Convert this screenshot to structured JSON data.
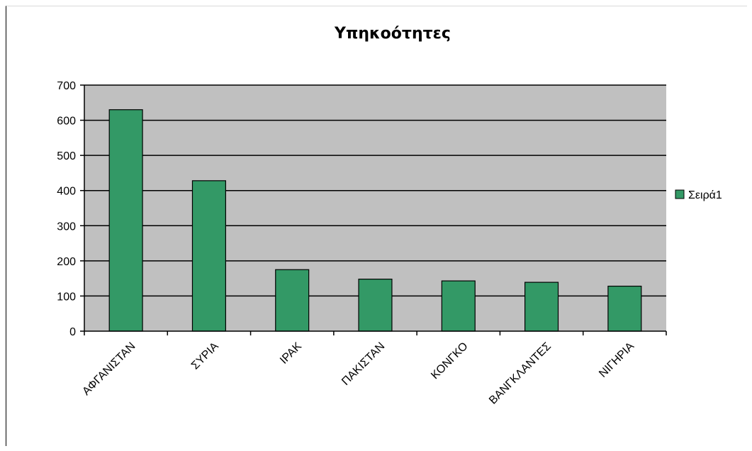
{
  "chart_data": {
    "type": "bar",
    "title": "Υπηκοότητες",
    "categories": [
      "ΑΦΓΑΝΙΣΤΑΝ",
      "ΣΥΡΙΑ",
      "ΙΡΑΚ",
      "ΠΑΚΙΣΤΑΝ",
      "ΚΟΝΓΚΟ",
      "ΒΑΝΓΚΛΑΝΤΕΣ",
      "ΝΙΓΗΡΙΑ"
    ],
    "series": [
      {
        "name": "Σειρά1",
        "values": [
          630,
          428,
          175,
          148,
          143,
          139,
          128
        ]
      }
    ],
    "ylim": [
      0,
      700
    ],
    "yticks": [
      0,
      100,
      200,
      300,
      400,
      500,
      600,
      700
    ],
    "grid": true,
    "legend_position": "right",
    "colors": {
      "bar": "#339966",
      "bar_stroke": "#000000",
      "plot_background": "#c0c0c0",
      "gridline": "#000000"
    }
  }
}
